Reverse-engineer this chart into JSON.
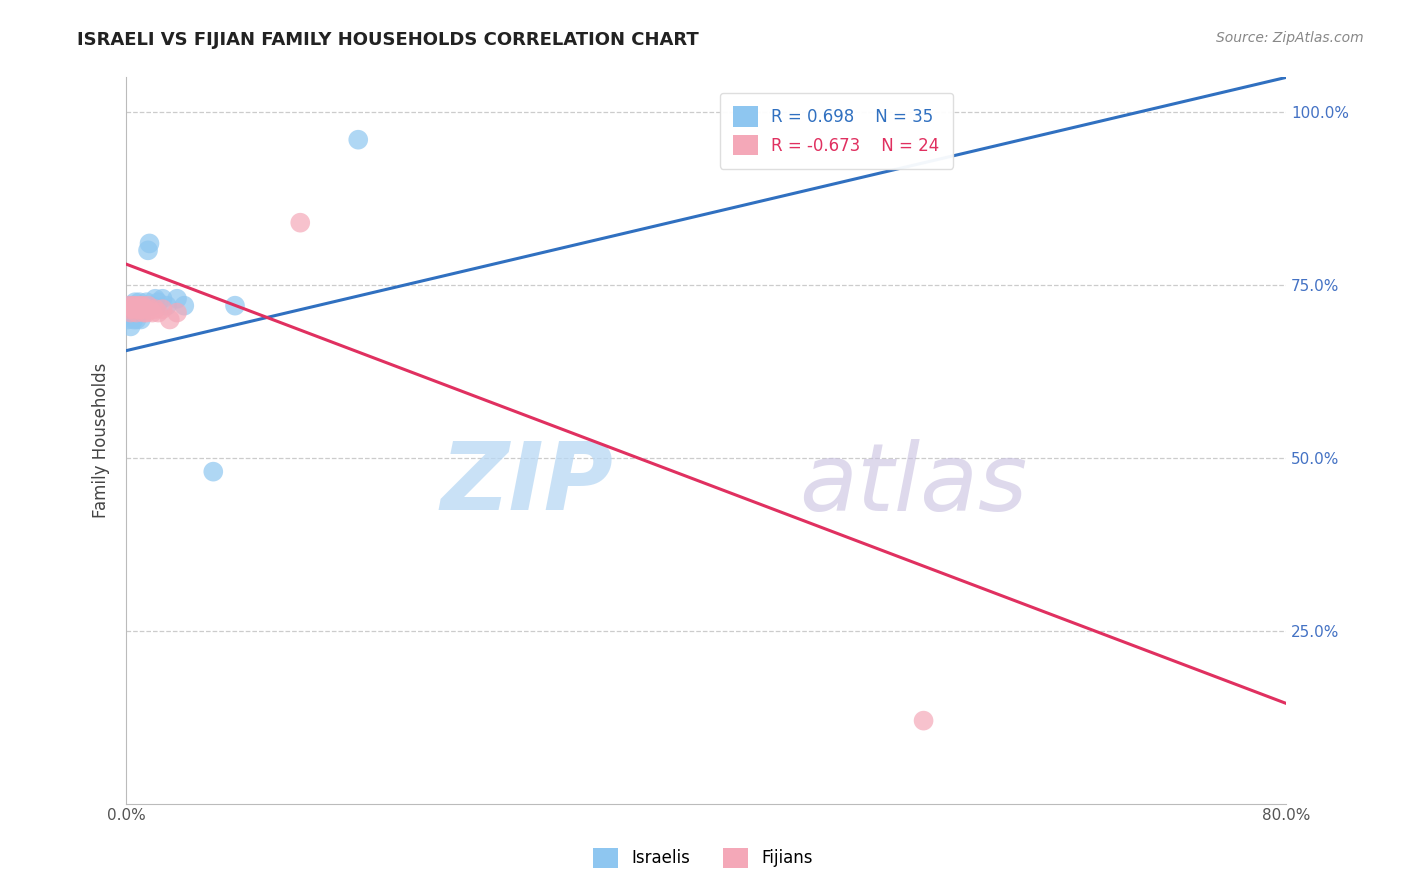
{
  "title": "ISRAELI VS FIJIAN FAMILY HOUSEHOLDS CORRELATION CHART",
  "source": "Source: ZipAtlas.com",
  "ylabel": "Family Households",
  "xlim": [
    0.0,
    0.8
  ],
  "ylim": [
    0.0,
    1.05
  ],
  "israeli_R": 0.698,
  "israeli_N": 35,
  "fijian_R": -0.673,
  "fijian_N": 24,
  "israeli_color": "#8ec6f0",
  "fijian_color": "#f4a8b8",
  "line_israeli_color": "#3070c0",
  "line_fijian_color": "#e03060",
  "background_color": "#ffffff",
  "grid_color": "#cccccc",
  "israeli_x": [
    0.001,
    0.002,
    0.002,
    0.003,
    0.003,
    0.004,
    0.004,
    0.005,
    0.005,
    0.006,
    0.006,
    0.007,
    0.007,
    0.008,
    0.008,
    0.009,
    0.009,
    0.01,
    0.01,
    0.011,
    0.012,
    0.013,
    0.014,
    0.015,
    0.016,
    0.018,
    0.02,
    0.022,
    0.025,
    0.028,
    0.035,
    0.04,
    0.06,
    0.075,
    0.16
  ],
  "israeli_y": [
    0.7,
    0.71,
    0.72,
    0.69,
    0.715,
    0.705,
    0.72,
    0.7,
    0.715,
    0.71,
    0.725,
    0.7,
    0.715,
    0.71,
    0.72,
    0.715,
    0.725,
    0.7,
    0.715,
    0.72,
    0.715,
    0.72,
    0.725,
    0.8,
    0.81,
    0.72,
    0.73,
    0.725,
    0.73,
    0.72,
    0.73,
    0.72,
    0.48,
    0.72,
    0.96
  ],
  "fijian_x": [
    0.001,
    0.002,
    0.003,
    0.004,
    0.005,
    0.006,
    0.007,
    0.008,
    0.009,
    0.01,
    0.011,
    0.012,
    0.013,
    0.014,
    0.015,
    0.016,
    0.018,
    0.02,
    0.022,
    0.025,
    0.03,
    0.035,
    0.12,
    0.55
  ],
  "fijian_y": [
    0.72,
    0.715,
    0.71,
    0.72,
    0.715,
    0.72,
    0.71,
    0.715,
    0.72,
    0.715,
    0.72,
    0.71,
    0.715,
    0.71,
    0.72,
    0.715,
    0.71,
    0.715,
    0.71,
    0.715,
    0.7,
    0.71,
    0.84,
    0.12
  ],
  "isr_line_x0": 0.0,
  "isr_line_y0": 0.655,
  "isr_line_x1": 0.8,
  "isr_line_y1": 1.05,
  "fij_line_x0": 0.0,
  "fij_line_y0": 0.78,
  "fij_line_x1": 0.8,
  "fij_line_y1": 0.145
}
